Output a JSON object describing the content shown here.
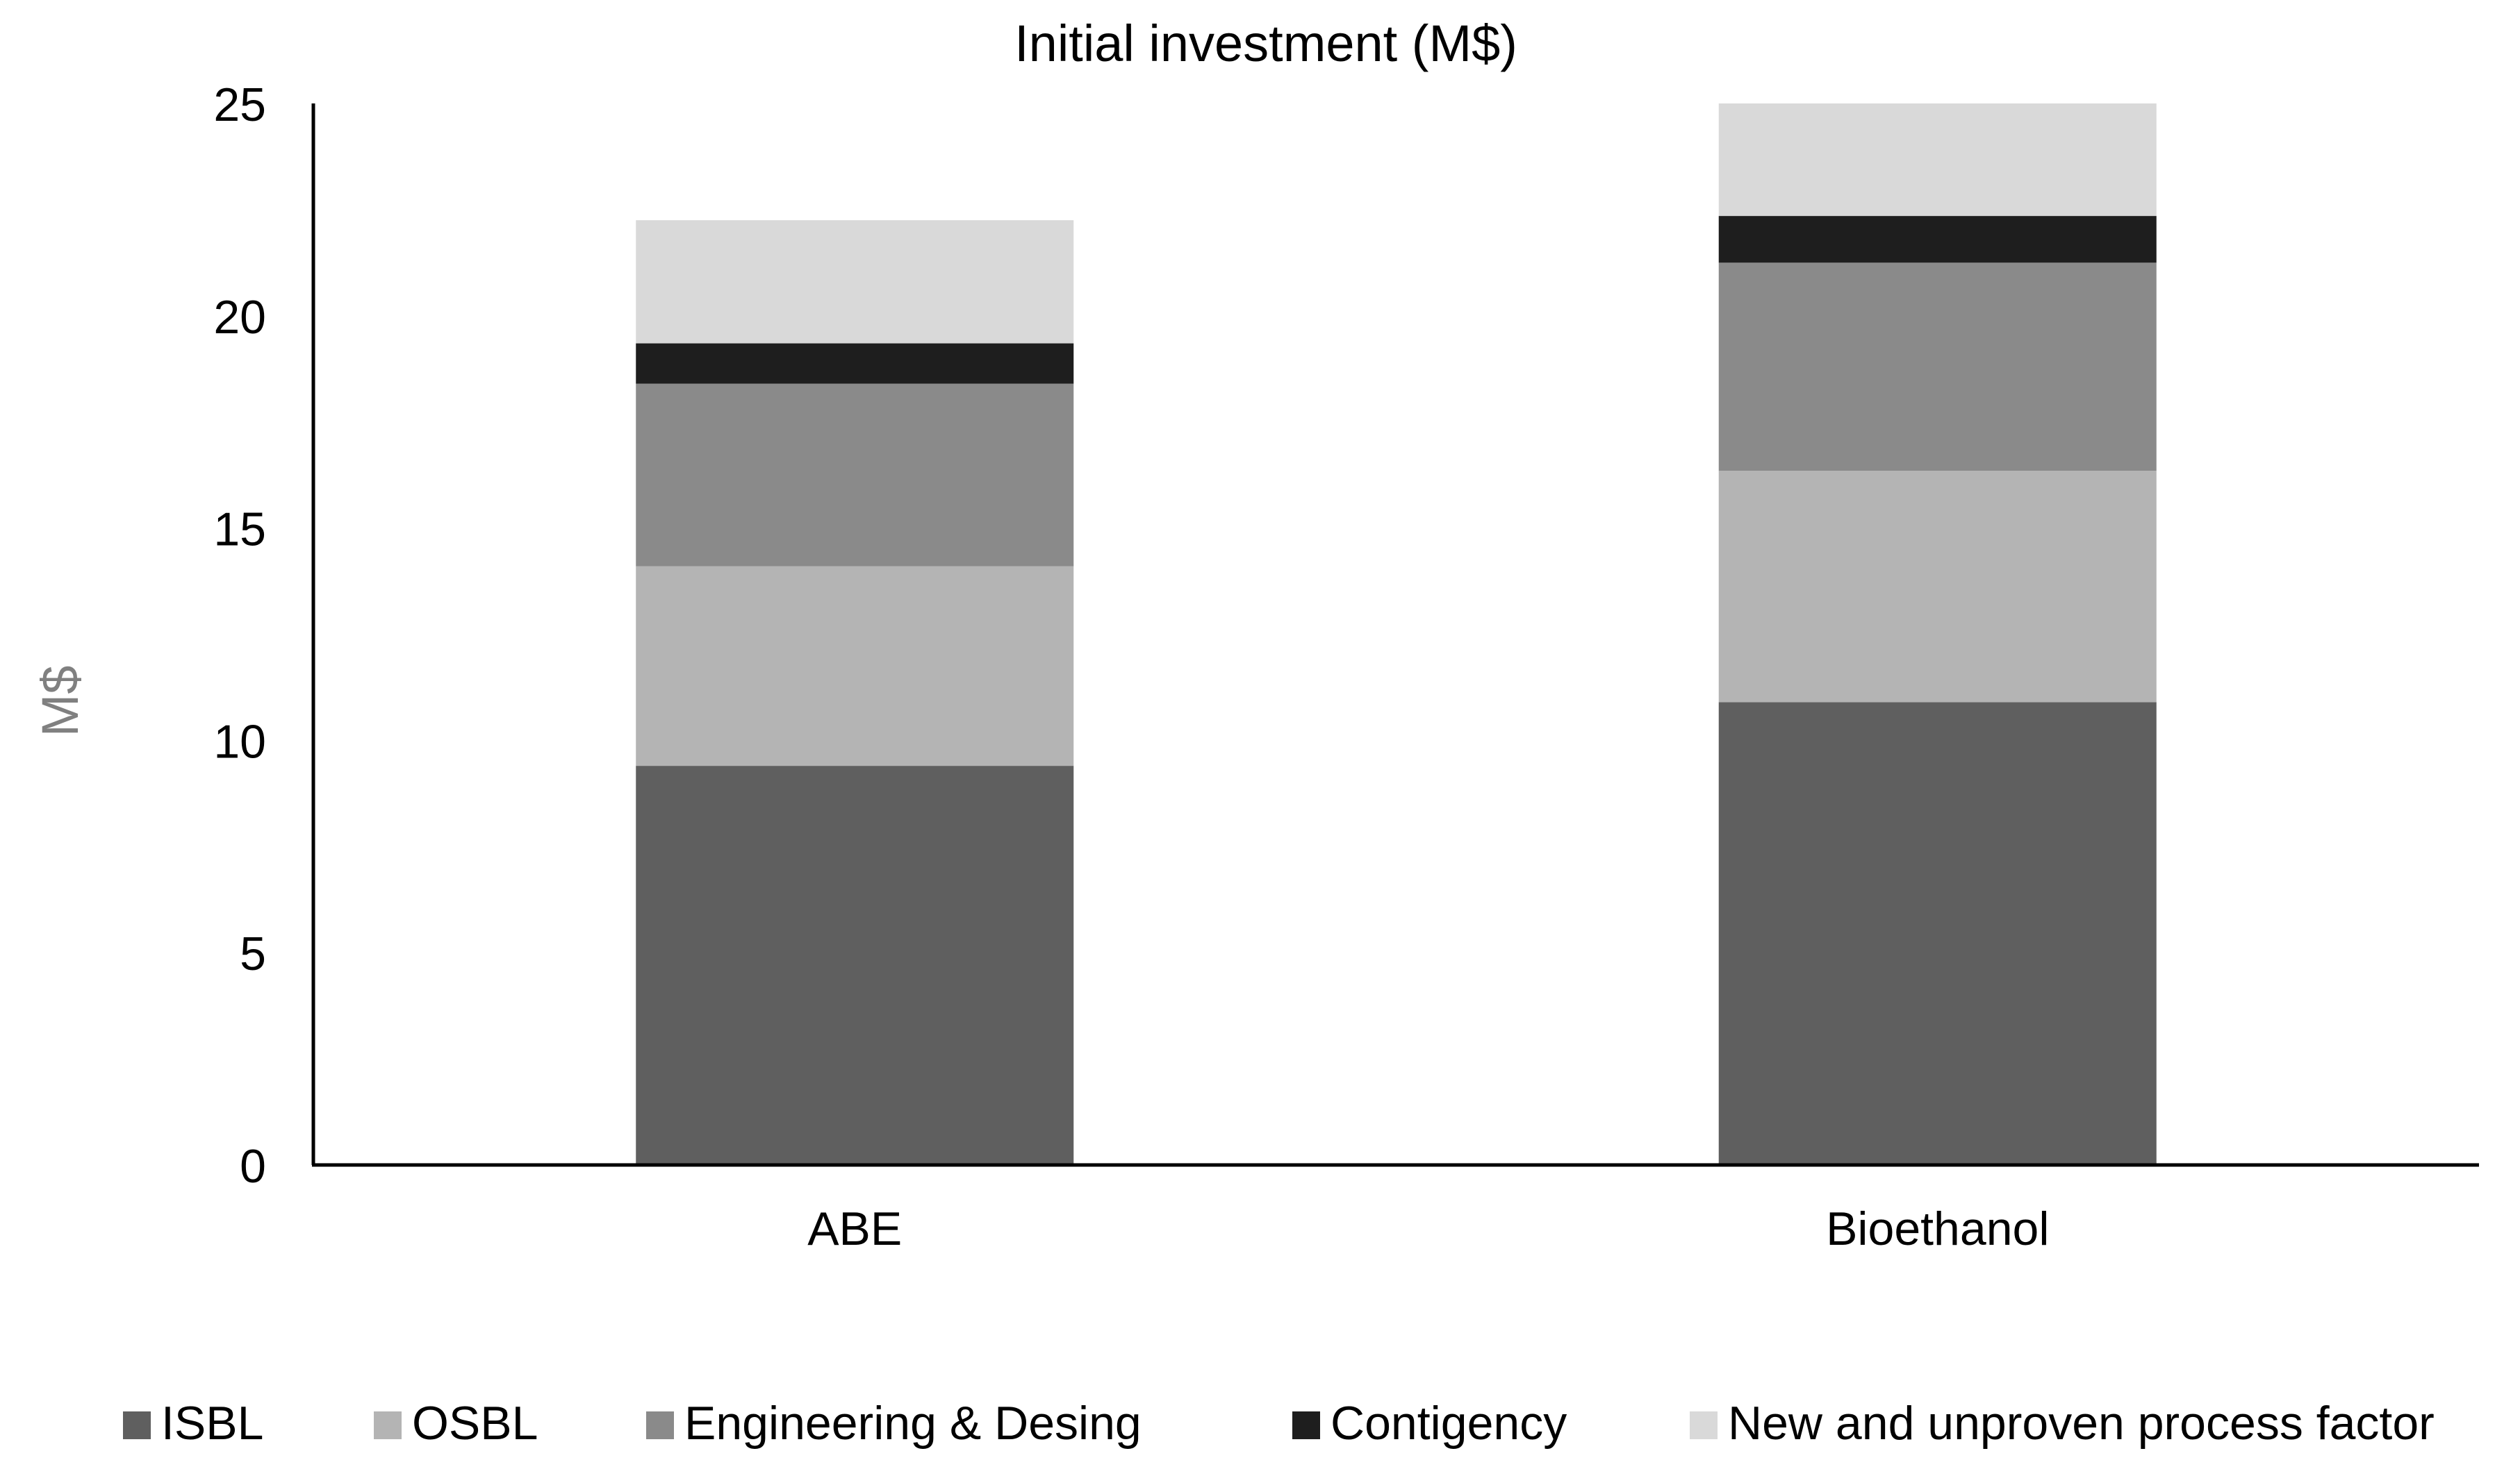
{
  "chart_data": {
    "type": "bar",
    "stacked": true,
    "title": "Initial investment (M$)",
    "xlabel": "",
    "ylabel": "M$",
    "ylim": [
      0,
      25
    ],
    "yticks": [
      0,
      5,
      10,
      15,
      20,
      25
    ],
    "grid": false,
    "legend_position": "bottom",
    "categories": [
      "ABE",
      "Bioethanol"
    ],
    "series": [
      {
        "name": "ISBL",
        "color": "#5f5f5f",
        "values": [
          9.4,
          10.9
        ]
      },
      {
        "name": "OSBL",
        "color": "#b4b4b4",
        "values": [
          4.7,
          5.45
        ]
      },
      {
        "name": "Engineering & Desing",
        "color": "#8a8a8a",
        "values": [
          4.3,
          4.9
        ]
      },
      {
        "name": "Contigency",
        "color": "#1e1e1e",
        "values": [
          0.95,
          1.1
        ]
      },
      {
        "name": "New and unproven process factor",
        "color": "#d9d9d9",
        "values": [
          2.9,
          2.65
        ]
      }
    ]
  }
}
